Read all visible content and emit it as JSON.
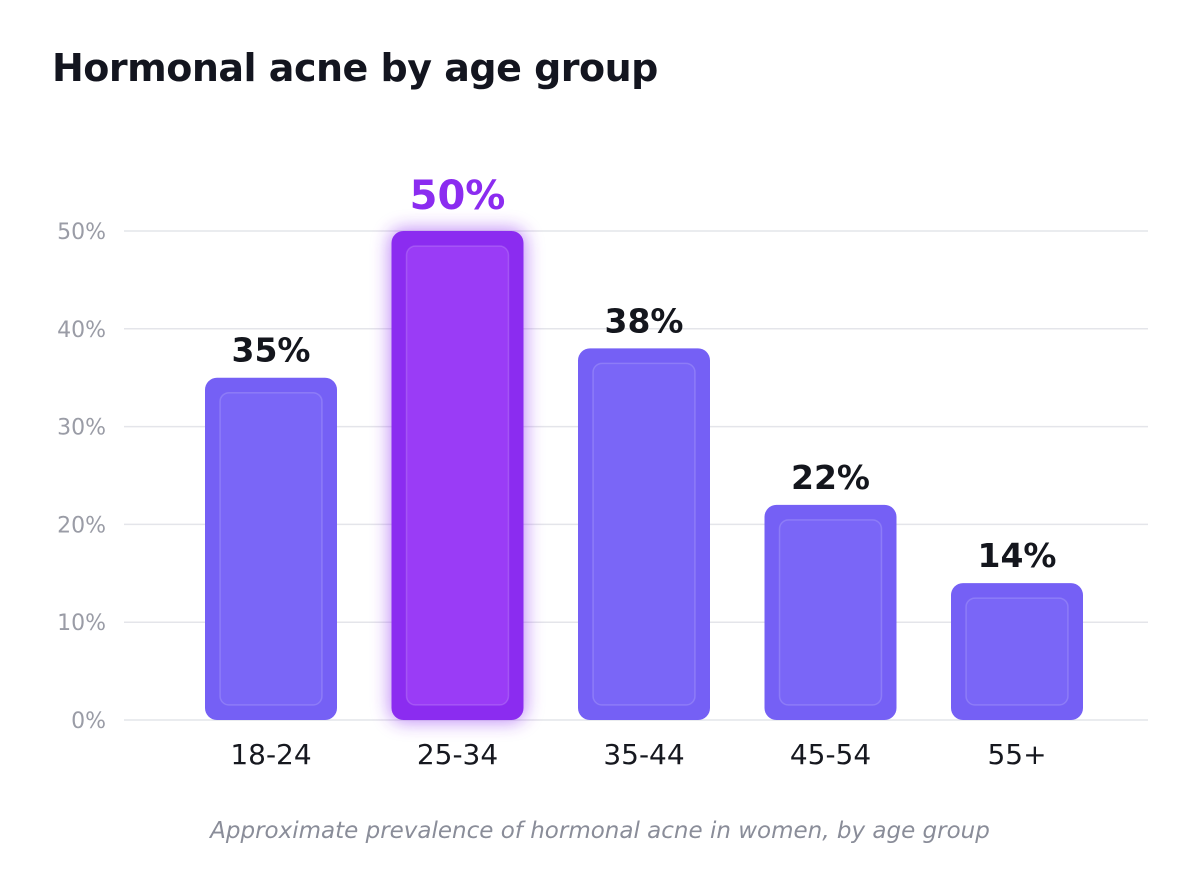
{
  "chart_data": {
    "type": "bar",
    "title": "Hormonal acne by age group",
    "caption": "Approximate prevalence of hormonal acne in women, by age group",
    "categories": [
      "18-24",
      "25-34",
      "35-44",
      "45-54",
      "55+"
    ],
    "values": [
      35,
      50,
      38,
      22,
      14
    ],
    "value_labels": [
      "35%",
      "50%",
      "38%",
      "22%",
      "14%"
    ],
    "highlighted_category": "25-34",
    "ylim": [
      0,
      50
    ],
    "yticks": [
      0,
      10,
      20,
      30,
      40,
      50
    ],
    "ytick_labels": [
      "0%",
      "10%",
      "20%",
      "30%",
      "40%",
      "50%"
    ],
    "xlabel": "",
    "ylabel": "",
    "grid": true,
    "legend": "none",
    "colors": {
      "bar": "#7560f5",
      "bar_inner": "#7a66f7",
      "highlight": "#8b2cf0",
      "highlight_inner": "#9a3cf6",
      "highlight_label": "#8b2cf0",
      "grid": "#e4e5ea"
    }
  }
}
